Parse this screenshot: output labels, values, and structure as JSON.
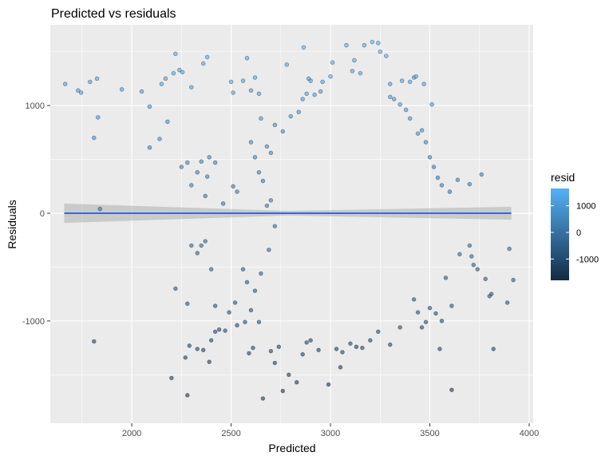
{
  "chart_data": {
    "type": "scatter",
    "title": "Predicted vs residuals",
    "xlabel": "Predicted",
    "ylabel": "Residuals",
    "xlim": [
      1590,
      4020
    ],
    "ylim": [
      -1950,
      1750
    ],
    "x_ticks": [
      2000,
      2500,
      3000,
      3500,
      4000
    ],
    "y_ticks": [
      -1000,
      0,
      1000
    ],
    "x_tick_labels": [
      "2000",
      "2500",
      "3000",
      "3500",
      "4000"
    ],
    "y_tick_labels": [
      "-1000",
      "0",
      "1000"
    ],
    "grid": true,
    "legend": {
      "title": "resid",
      "placement": "right",
      "labels": [
        "1000",
        "0",
        "-1000"
      ],
      "values": [
        1000,
        0,
        -1000
      ],
      "range": [
        -1800,
        1650
      ],
      "low_color": "#132b43",
      "high_color": "#56b1f7"
    },
    "colors": {
      "panel": "#ebebeb",
      "grid": "#ffffff",
      "smooth_line": "#3366ff",
      "ribbon": "#999999"
    },
    "smooth": {
      "method": "linear",
      "x": [
        1660,
        3910
      ],
      "y": [
        0,
        0
      ],
      "ci_halfwidth": [
        90,
        60
      ]
    },
    "series": [
      {
        "values": [
          [
            1665,
            1200
          ],
          [
            1730,
            1140
          ],
          [
            1745,
            1120
          ],
          [
            1790,
            1220
          ],
          [
            1825,
            1250
          ],
          [
            1810,
            700
          ],
          [
            1830,
            890
          ],
          [
            1840,
            40
          ],
          [
            1950,
            1150
          ],
          [
            2050,
            1130
          ],
          [
            2090,
            990
          ],
          [
            2090,
            610
          ],
          [
            2140,
            690
          ],
          [
            2150,
            1200
          ],
          [
            2170,
            1250
          ],
          [
            2210,
            1300
          ],
          [
            2220,
            1480
          ],
          [
            2240,
            1330
          ],
          [
            2255,
            1310
          ],
          [
            2300,
            1170
          ],
          [
            2360,
            1390
          ],
          [
            2380,
            1450
          ],
          [
            2500,
            1220
          ],
          [
            2510,
            1120
          ],
          [
            2560,
            1230
          ],
          [
            2580,
            1440
          ],
          [
            2600,
            1140
          ],
          [
            2620,
            1260
          ],
          [
            2640,
            1110
          ],
          [
            2780,
            1380
          ],
          [
            2865,
            1540
          ],
          [
            2890,
            1250
          ],
          [
            2900,
            1230
          ],
          [
            2960,
            1220
          ],
          [
            3010,
            1400
          ],
          [
            3080,
            1560
          ],
          [
            3170,
            1560
          ],
          [
            3210,
            1590
          ],
          [
            3240,
            1580
          ],
          [
            3250,
            1500
          ],
          [
            3280,
            1460
          ],
          [
            3150,
            1300
          ],
          [
            3110,
            1320
          ],
          [
            3000,
            1270
          ],
          [
            3120,
            1420
          ],
          [
            3300,
            1200
          ],
          [
            3360,
            1230
          ],
          [
            3420,
            1260
          ],
          [
            3430,
            1270
          ],
          [
            3470,
            1200
          ],
          [
            3510,
            1010
          ],
          [
            3400,
            1220
          ],
          [
            2180,
            850
          ],
          [
            2250,
            430
          ],
          [
            2280,
            470
          ],
          [
            2330,
            380
          ],
          [
            2350,
            480
          ],
          [
            2390,
            520
          ],
          [
            2420,
            470
          ],
          [
            2300,
            260
          ],
          [
            2370,
            160
          ],
          [
            2380,
            340
          ],
          [
            2510,
            250
          ],
          [
            2530,
            200
          ],
          [
            2460,
            90
          ],
          [
            2300,
            -300
          ],
          [
            2330,
            -370
          ],
          [
            2350,
            -300
          ],
          [
            2370,
            -260
          ],
          [
            2400,
            -520
          ],
          [
            2220,
            -700
          ],
          [
            2280,
            -840
          ],
          [
            2420,
            -860
          ],
          [
            1810,
            -1190
          ],
          [
            2200,
            -1530
          ],
          [
            2270,
            -1340
          ],
          [
            2280,
            -1690
          ],
          [
            2290,
            -1230
          ],
          [
            2330,
            -1260
          ],
          [
            2360,
            -1270
          ],
          [
            2390,
            -1380
          ],
          [
            2400,
            -1180
          ],
          [
            2420,
            -1100
          ],
          [
            2440,
            -1080
          ],
          [
            2470,
            -1090
          ],
          [
            2490,
            -920
          ],
          [
            2520,
            -830
          ],
          [
            2530,
            -1040
          ],
          [
            2570,
            -1010
          ],
          [
            2590,
            -1300
          ],
          [
            2610,
            -1250
          ],
          [
            2660,
            -1720
          ],
          [
            2700,
            -1280
          ],
          [
            2720,
            -1390
          ],
          [
            2740,
            -1240
          ],
          [
            2760,
            -1650
          ],
          [
            2790,
            -1500
          ],
          [
            2830,
            -1570
          ],
          [
            2860,
            -1310
          ],
          [
            2880,
            -1200
          ],
          [
            2900,
            -1180
          ],
          [
            2940,
            -1270
          ],
          [
            2990,
            -1590
          ],
          [
            3030,
            -1260
          ],
          [
            3050,
            -1430
          ],
          [
            3060,
            -1290
          ],
          [
            3100,
            -1210
          ],
          [
            3130,
            -1240
          ],
          [
            3160,
            -1250
          ],
          [
            3200,
            -1180
          ],
          [
            3240,
            -1100
          ],
          [
            3300,
            -1220
          ],
          [
            3350,
            -1060
          ],
          [
            3610,
            -1640
          ],
          [
            3820,
            -1260
          ],
          [
            3890,
            -830
          ],
          [
            3920,
            -620
          ],
          [
            3900,
            -330
          ],
          [
            3810,
            -750
          ],
          [
            3800,
            -770
          ],
          [
            3780,
            -610
          ],
          [
            3740,
            -520
          ],
          [
            3720,
            -480
          ],
          [
            3710,
            -400
          ],
          [
            3700,
            -300
          ],
          [
            3650,
            -380
          ],
          [
            3610,
            -860
          ],
          [
            3580,
            -600
          ],
          [
            3560,
            -1000
          ],
          [
            3550,
            -1260
          ],
          [
            3530,
            -930
          ],
          [
            3500,
            -880
          ],
          [
            3480,
            -1010
          ],
          [
            3460,
            -1060
          ],
          [
            3440,
            -920
          ],
          [
            3420,
            -800
          ],
          [
            3760,
            360
          ],
          [
            3700,
            270
          ],
          [
            3640,
            310
          ],
          [
            3600,
            200
          ],
          [
            3540,
            330
          ],
          [
            3520,
            430
          ],
          [
            3500,
            520
          ],
          [
            3560,
            260
          ],
          [
            3480,
            660
          ],
          [
            3460,
            770
          ],
          [
            3440,
            740
          ],
          [
            3400,
            880
          ],
          [
            3380,
            960
          ],
          [
            3350,
            1010
          ],
          [
            3320,
            1060
          ],
          [
            3300,
            1080
          ],
          [
            2650,
            880
          ],
          [
            2720,
            820
          ],
          [
            2760,
            760
          ],
          [
            2800,
            900
          ],
          [
            2840,
            940
          ],
          [
            2860,
            1060
          ],
          [
            2880,
            1110
          ],
          [
            2920,
            1100
          ],
          [
            2950,
            1130
          ],
          [
            2680,
            620
          ],
          [
            2700,
            560
          ],
          [
            2620,
            520
          ],
          [
            2600,
            660
          ],
          [
            2640,
            380
          ],
          [
            2660,
            300
          ],
          [
            2680,
            70
          ],
          [
            2700,
            120
          ],
          [
            2720,
            -120
          ],
          [
            2690,
            -340
          ],
          [
            2650,
            -560
          ],
          [
            2620,
            -720
          ],
          [
            2600,
            -900
          ],
          [
            2580,
            -640
          ],
          [
            2640,
            -1010
          ],
          [
            2560,
            -520
          ]
        ]
      }
    ]
  }
}
